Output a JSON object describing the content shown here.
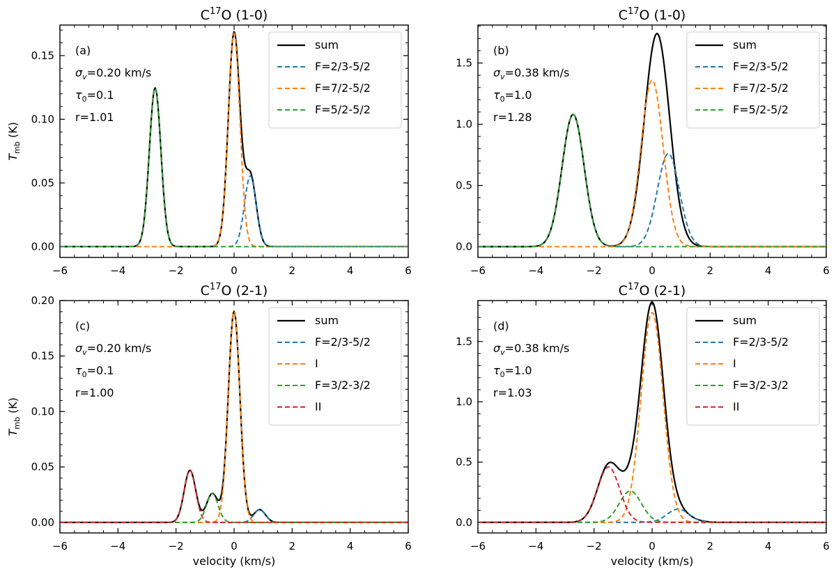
{
  "chart_data": [
    {
      "panel_label": "(a)",
      "type": "line",
      "title_main": "C",
      "title_sup": "17",
      "title_rest": "O (1-0)",
      "xlabel": "",
      "ylabel_main": "T",
      "ylabel_sub": "mb",
      "ylabel_rest": " (K)",
      "xlim": [
        -6,
        6
      ],
      "ylim": [
        -0.0085,
        0.174
      ],
      "xticks": [
        -6,
        -4,
        -2,
        0,
        2,
        4,
        6
      ],
      "xtick_labels": [
        "−6",
        "−4",
        "−2",
        "0",
        "2",
        "4",
        "6"
      ],
      "yticks": [
        0.0,
        0.05,
        0.1,
        0.15
      ],
      "ytick_labels": [
        "0.00",
        "0.05",
        "0.10",
        "0.15"
      ],
      "params": {
        "sigma_pre": "σ",
        "sigma_sub": "v",
        "sigma_val": "=0.20 km/s",
        "tau_pre": "τ",
        "tau_sub": "0",
        "tau_val": "=0.1",
        "r": "r=1.01"
      },
      "components": [
        {
          "name": "F=2/3-5/2",
          "color": "#1f77b4",
          "center": 0.56,
          "sigma": 0.2,
          "amp": 0.0555
        },
        {
          "name": "F=7/2-5/2",
          "color": "#ff7f0e",
          "center": 0.0,
          "sigma": 0.2,
          "amp": 0.1675
        },
        {
          "name": "F=5/2-5/2",
          "color": "#2ca02c",
          "center": -2.72,
          "sigma": 0.2,
          "amp": 0.1245
        }
      ],
      "sum_color": "#000000",
      "legend": [
        "sum",
        "F=2/3-5/2",
        "F=7/2-5/2",
        "F=5/2-5/2"
      ]
    },
    {
      "panel_label": "(b)",
      "type": "line",
      "title_main": "C",
      "title_sup": "17",
      "title_rest": "O (1-0)",
      "xlabel": "",
      "ylim": [
        -0.088,
        1.81
      ],
      "xlim": [
        -6,
        6
      ],
      "xticks": [
        -6,
        -4,
        -2,
        0,
        2,
        4,
        6
      ],
      "xtick_labels": [
        "−6",
        "−4",
        "−2",
        "0",
        "2",
        "4",
        "6"
      ],
      "yticks": [
        0.0,
        0.5,
        1.0,
        1.5
      ],
      "ytick_labels": [
        "0.0",
        "0.5",
        "1.0",
        "1.5"
      ],
      "params": {
        "sigma_pre": "σ",
        "sigma_sub": "v",
        "sigma_val": "=0.38 km/s",
        "tau_pre": "τ",
        "tau_sub": "0",
        "tau_val": "=1.0",
        "r": "r=1.28"
      },
      "components": [
        {
          "name": "F=2/3-5/2",
          "color": "#1f77b4",
          "center": 0.56,
          "sigma": 0.38,
          "amp": 0.76
        },
        {
          "name": "F=7/2-5/2",
          "color": "#ff7f0e",
          "center": 0.0,
          "sigma": 0.38,
          "amp": 1.36
        },
        {
          "name": "F=5/2-5/2",
          "color": "#2ca02c",
          "center": -2.72,
          "sigma": 0.38,
          "amp": 1.08
        }
      ],
      "sum_override": {
        "gauss": [
          {
            "center": 0.17,
            "sigma": 0.435,
            "amp": 1.74
          },
          {
            "center": -2.72,
            "sigma": 0.38,
            "amp": 1.08
          }
        ]
      },
      "sum_color": "#000000",
      "legend": [
        "sum",
        "F=2/3-5/2",
        "F=7/2-5/2",
        "F=5/2-5/2"
      ]
    },
    {
      "panel_label": "(c)",
      "type": "line",
      "title_main": "C",
      "title_sup": "17",
      "title_rest": "O (2-1)",
      "xlabel": "velocity (km/s)",
      "ylabel_main": "T",
      "ylabel_sub": "mb",
      "ylabel_rest": " (K)",
      "xlim": [
        -6,
        6
      ],
      "ylim": [
        -0.0095,
        0.2
      ],
      "xticks": [
        -6,
        -4,
        -2,
        0,
        2,
        4,
        6
      ],
      "xtick_labels": [
        "−6",
        "−4",
        "−2",
        "0",
        "2",
        "4",
        "6"
      ],
      "yticks": [
        0.0,
        0.05,
        0.1,
        0.15,
        0.2
      ],
      "ytick_labels": [
        "0.00",
        "0.05",
        "0.10",
        "0.15",
        "0.20"
      ],
      "params": {
        "sigma_pre": "σ",
        "sigma_sub": "v",
        "sigma_val": "=0.20 km/s",
        "tau_pre": "τ",
        "tau_sub": "0",
        "tau_val": "=0.1",
        "r": "r=1.00"
      },
      "components": [
        {
          "name": "F=2/3-5/2",
          "color": "#1f77b4",
          "center": 0.88,
          "sigma": 0.2,
          "amp": 0.0115
        },
        {
          "name": "I",
          "color": "#ff7f0e",
          "center": 0.0,
          "sigma": 0.2,
          "amp": 0.19
        },
        {
          "name": "F=3/2-3/2",
          "color": "#2ca02c",
          "center": -0.75,
          "sigma": 0.2,
          "amp": 0.026
        },
        {
          "name": "II",
          "color": "#d62728",
          "center": -1.52,
          "sigma": 0.2,
          "amp": 0.047
        }
      ],
      "sum_color": "#000000",
      "legend": [
        "sum",
        "F=2/3-5/2",
        "I",
        "F=3/2-3/2",
        "II"
      ]
    },
    {
      "panel_label": "(d)",
      "type": "line",
      "title_main": "C",
      "title_sup": "17",
      "title_rest": "O (2-1)",
      "xlabel": "velocity (km/s)",
      "xlim": [
        -6,
        6
      ],
      "ylim": [
        -0.088,
        1.84
      ],
      "xticks": [
        -6,
        -4,
        -2,
        0,
        2,
        4,
        6
      ],
      "xtick_labels": [
        "−6",
        "−4",
        "−2",
        "0",
        "2",
        "4",
        "6"
      ],
      "yticks": [
        0.0,
        0.5,
        1.0,
        1.5
      ],
      "ytick_labels": [
        "0.0",
        "0.5",
        "1.0",
        "1.5"
      ],
      "params": {
        "sigma_pre": "σ",
        "sigma_sub": "v",
        "sigma_val": "=0.38 km/s",
        "tau_pre": "τ",
        "tau_sub": "0",
        "tau_val": "=1.0",
        "r": "r=1.03"
      },
      "components": [
        {
          "name": "F=2/3-5/2",
          "color": "#1f77b4",
          "center": 0.9,
          "sigma": 0.38,
          "amp": 0.11
        },
        {
          "name": "I",
          "color": "#ff7f0e",
          "center": 0.0,
          "sigma": 0.38,
          "amp": 1.74
        },
        {
          "name": "F=3/2-3/2",
          "color": "#2ca02c",
          "center": -0.75,
          "sigma": 0.38,
          "amp": 0.26
        },
        {
          "name": "II",
          "color": "#d62728",
          "center": -1.5,
          "sigma": 0.38,
          "amp": 0.46
        }
      ],
      "sum_override": {
        "gauss": [
          {
            "center": 0.0,
            "sigma": 0.38,
            "amp": 1.74
          },
          {
            "center": -1.5,
            "sigma": 0.38,
            "amp": 0.46
          },
          {
            "center": -0.75,
            "sigma": 0.38,
            "amp": 0.22
          },
          {
            "center": 0.65,
            "sigma": 0.5,
            "amp": 0.13
          }
        ]
      },
      "sum_color": "#000000",
      "legend": [
        "sum",
        "F=2/3-5/2",
        "I",
        "F=3/2-3/2",
        "II"
      ]
    }
  ]
}
